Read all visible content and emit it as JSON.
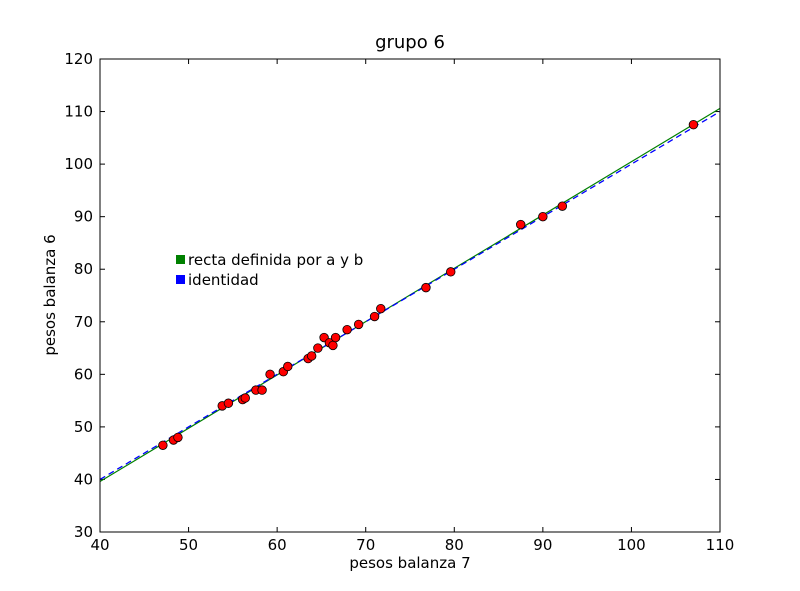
{
  "chart_data": {
    "type": "scatter",
    "title": "grupo 6",
    "xlabel": "pesos balanza 7",
    "ylabel": "pesos balanza 6",
    "xlim": [
      40,
      110
    ],
    "ylim": [
      30,
      120
    ],
    "xticks": [
      "40",
      "50",
      "60",
      "70",
      "80",
      "90",
      "100",
      "110"
    ],
    "yticks": [
      "30",
      "40",
      "50",
      "60",
      "70",
      "80",
      "90",
      "100",
      "110",
      "120"
    ],
    "grid": false,
    "legend_position": "center-left",
    "series": [
      {
        "name": "recta definida por a y b",
        "kind": "line",
        "style": "solid",
        "color": "#008000",
        "x": [
          40,
          110
        ],
        "y": [
          39.6,
          110.6
        ]
      },
      {
        "name": "identidad",
        "kind": "line",
        "style": "dashed",
        "color": "#0000ff",
        "x": [
          40,
          110
        ],
        "y": [
          40,
          110
        ]
      },
      {
        "kind": "scatter",
        "color": "#ff0000",
        "points": [
          [
            47.1,
            46.5
          ],
          [
            48.3,
            47.5
          ],
          [
            48.8,
            48.0
          ],
          [
            53.8,
            54.0
          ],
          [
            54.5,
            54.5
          ],
          [
            56.1,
            55.2
          ],
          [
            56.4,
            55.5
          ],
          [
            57.6,
            57.0
          ],
          [
            58.3,
            57.0
          ],
          [
            59.2,
            60.0
          ],
          [
            60.7,
            60.5
          ],
          [
            61.2,
            61.5
          ],
          [
            63.5,
            63.0
          ],
          [
            63.9,
            63.5
          ],
          [
            64.6,
            65.0
          ],
          [
            65.3,
            67.0
          ],
          [
            65.9,
            66.0
          ],
          [
            66.3,
            65.5
          ],
          [
            66.6,
            67.0
          ],
          [
            67.9,
            68.5
          ],
          [
            69.2,
            69.5
          ],
          [
            71.0,
            71.0
          ],
          [
            71.7,
            72.5
          ],
          [
            76.8,
            76.5
          ],
          [
            79.6,
            79.5
          ],
          [
            87.5,
            88.5
          ],
          [
            90.0,
            90.0
          ],
          [
            92.2,
            92.0
          ],
          [
            107.0,
            107.5
          ]
        ]
      }
    ]
  }
}
